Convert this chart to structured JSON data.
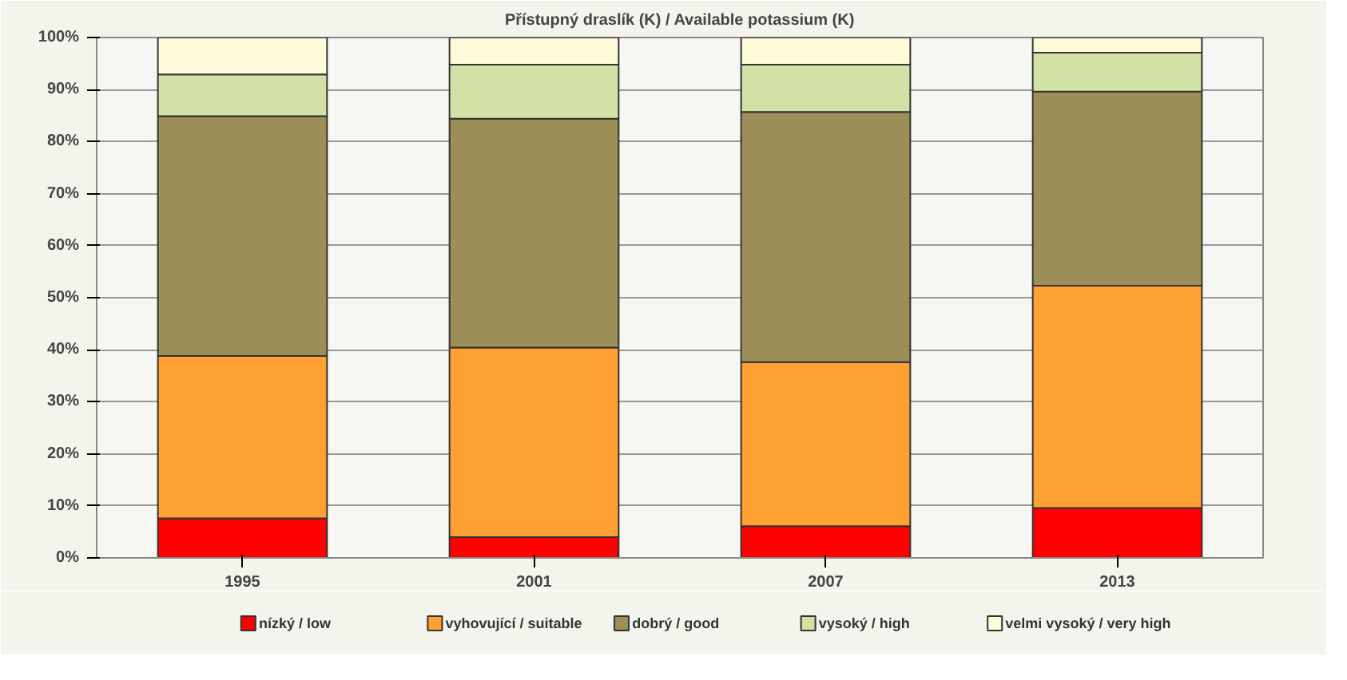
{
  "chart_data": {
    "type": "bar",
    "stacked": true,
    "title": "Přístupný draslík (K) / Available potassium (K)",
    "categories": [
      "1995",
      "2001",
      "2007",
      "2013"
    ],
    "series": [
      {
        "name": "nízký / low",
        "color": "#ff0000",
        "values": [
          7.6,
          4.0,
          6.1,
          9.6
        ]
      },
      {
        "name": "vyhovující / suitable",
        "color": "#ffa033",
        "values": [
          31.2,
          36.4,
          31.5,
          42.7
        ]
      },
      {
        "name": "dobrý / good",
        "color": "#9c8f58",
        "values": [
          46.1,
          44.0,
          48.1,
          37.3
        ]
      },
      {
        "name": "vysoký / high",
        "color": "#d2e2a6",
        "values": [
          8.0,
          10.4,
          9.1,
          7.5
        ]
      },
      {
        "name": "velmi vysoký / very high",
        "color": "#fefbd8",
        "values": [
          7.1,
          5.2,
          5.2,
          2.9
        ]
      }
    ],
    "ylim": [
      0,
      100
    ],
    "yticks": [
      {
        "value": 0,
        "label": "0%"
      },
      {
        "value": 10,
        "label": "10%"
      },
      {
        "value": 20,
        "label": "20%"
      },
      {
        "value": 30,
        "label": "30%"
      },
      {
        "value": 40,
        "label": "40%"
      },
      {
        "value": 50,
        "label": "50%"
      },
      {
        "value": 60,
        "label": "60%"
      },
      {
        "value": 70,
        "label": "70%"
      },
      {
        "value": 80,
        "label": "80%"
      },
      {
        "value": 90,
        "label": "90%"
      },
      {
        "value": 100,
        "label": "100%"
      }
    ],
    "grid": "y",
    "legend": "bottom"
  }
}
